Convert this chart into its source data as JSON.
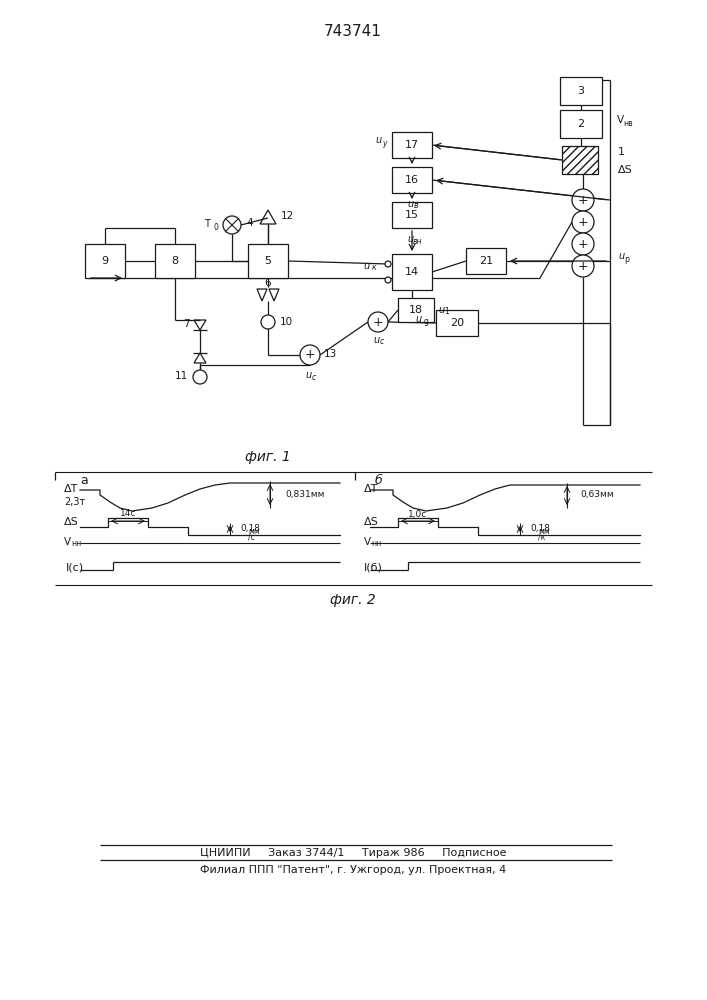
{
  "title": "743741",
  "fig1_label": "фиг. 1",
  "fig2_label": "фиг. 2",
  "bottom_line1": "ЦНИИПИ     Заказ 3744/1     Тираж 986     Подписное",
  "bottom_line2": "Филиал ППП \"Патент\", г. Ужгород, ул. Проектная, 4",
  "line_color": "#1a1a1a"
}
